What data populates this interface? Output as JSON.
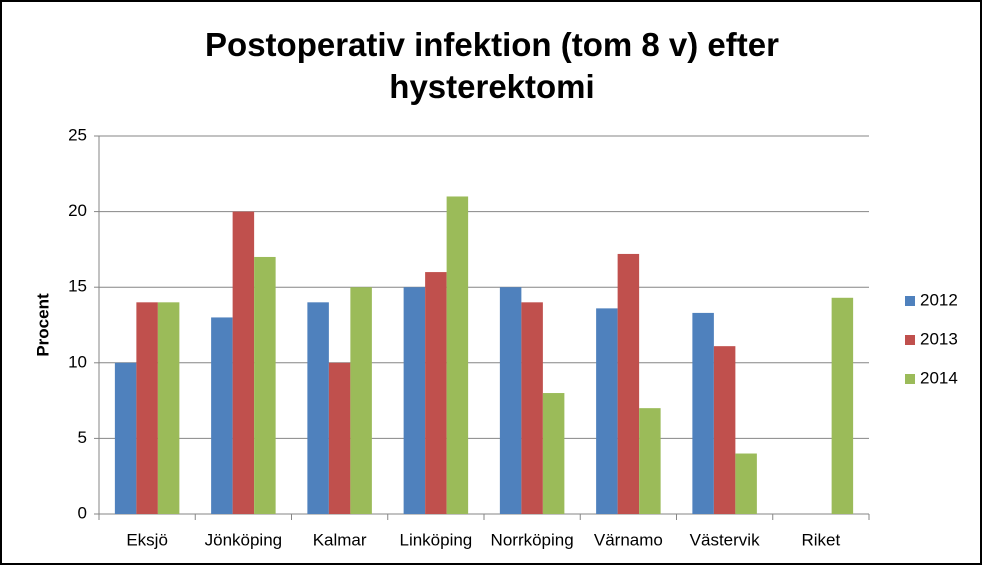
{
  "chart_data": {
    "type": "bar",
    "title": "Postoperativ infektion (tom 8 v) efter hysterektomi",
    "y_label": "Procent",
    "categories": [
      "Eksjö",
      "Jönköping",
      "Kalmar",
      "Linköping",
      "Norrköping",
      "Värnamo",
      "Västervik",
      "Riket"
    ],
    "series": [
      {
        "name": "2012",
        "color": "#4f81bd",
        "values": [
          10,
          13,
          14,
          15,
          15,
          13.6,
          13.3,
          null
        ]
      },
      {
        "name": "2013",
        "color": "#c0504d",
        "values": [
          14,
          20,
          10,
          16,
          14,
          17.2,
          11.1,
          null
        ]
      },
      {
        "name": "2014",
        "color": "#9bbb59",
        "values": [
          14,
          17,
          15,
          21,
          8,
          7,
          4,
          14.3
        ]
      }
    ],
    "ylim": [
      0,
      25
    ],
    "yticks": [
      0,
      5,
      10,
      15,
      20,
      25
    ],
    "grid": true,
    "legend": "right"
  }
}
